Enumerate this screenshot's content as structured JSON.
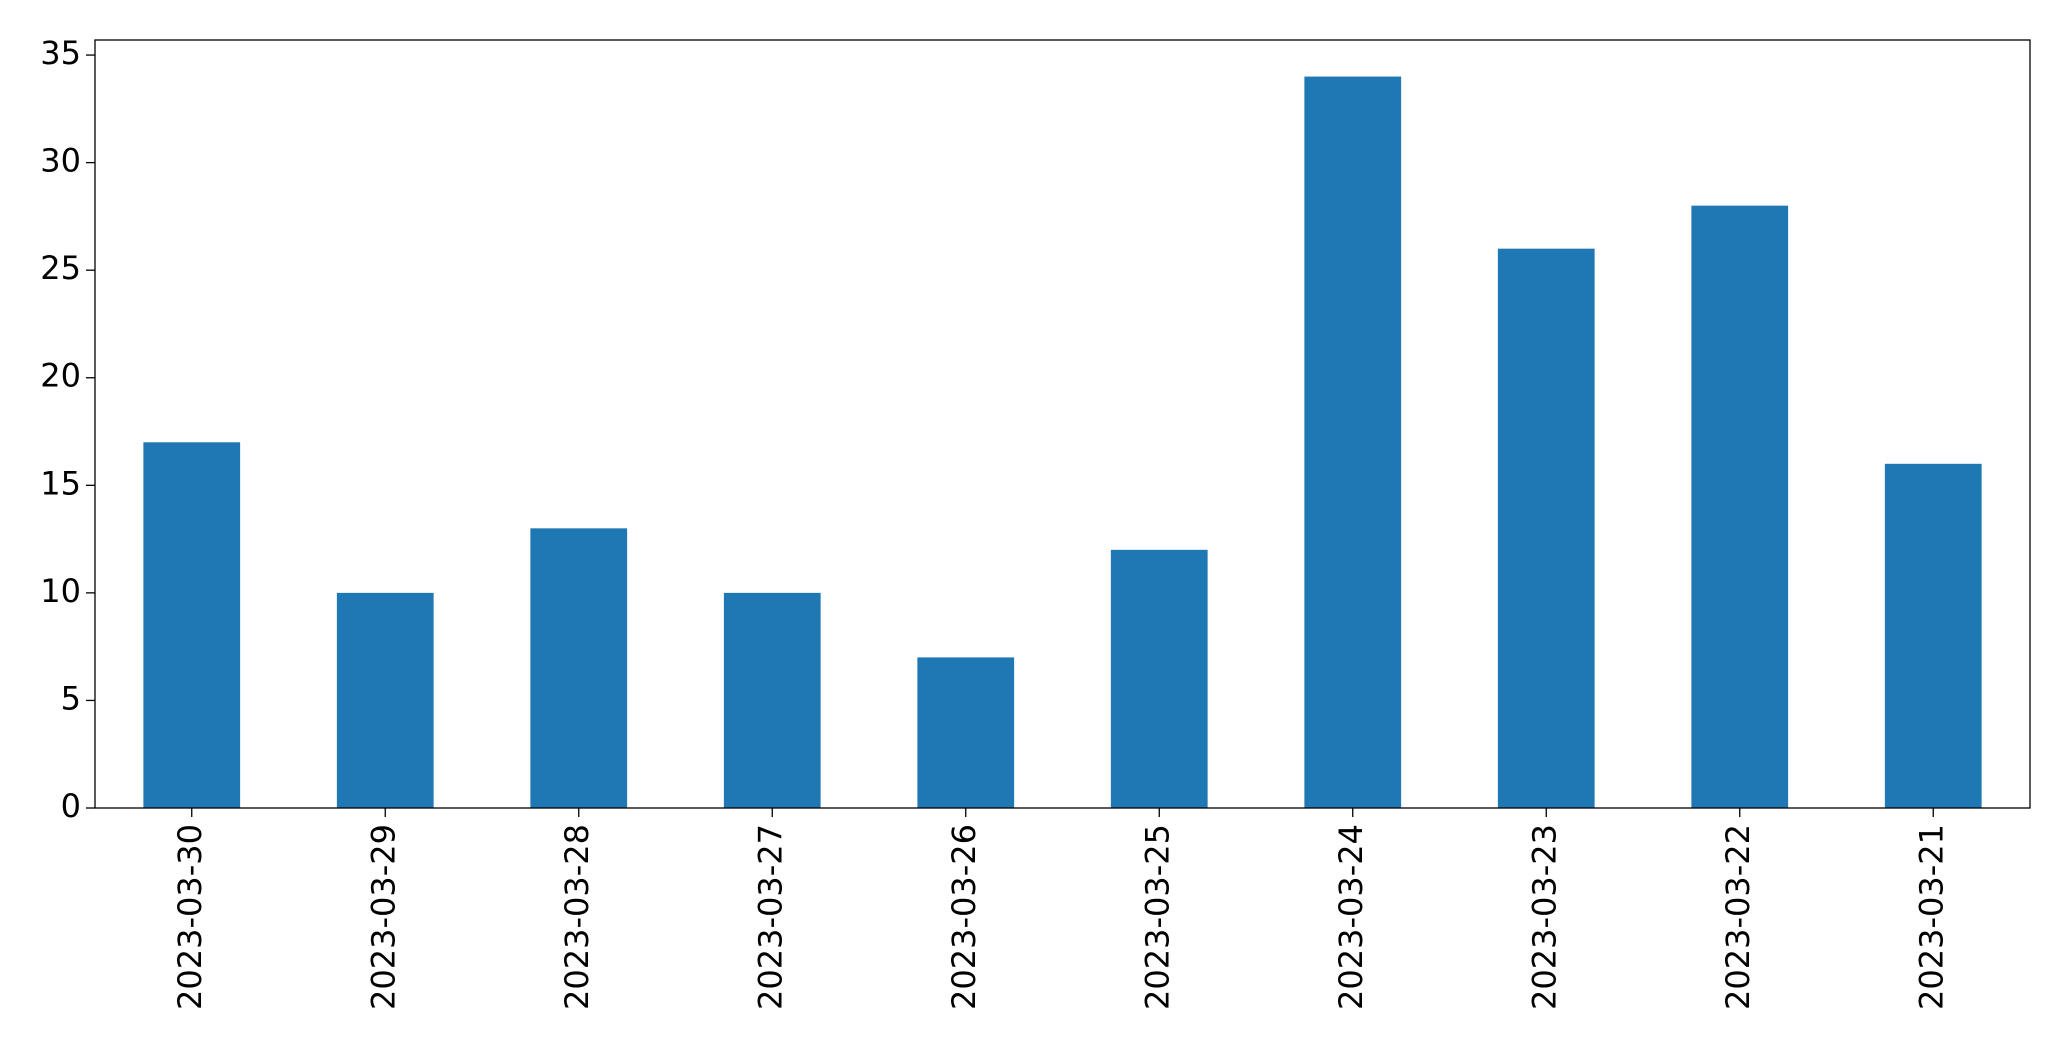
{
  "chart_data": {
    "type": "bar",
    "categories": [
      "2023-03-30",
      "2023-03-29",
      "2023-03-28",
      "2023-03-27",
      "2023-03-26",
      "2023-03-25",
      "2023-03-24",
      "2023-03-23",
      "2023-03-22",
      "2023-03-21"
    ],
    "values": [
      17,
      10,
      13,
      10,
      7,
      12,
      34,
      26,
      28,
      16
    ],
    "color": "#1f77b4",
    "ylim": [
      0,
      35.7
    ],
    "yticks": [
      0,
      5,
      10,
      15,
      20,
      25,
      30,
      35
    ],
    "grid": false
  }
}
